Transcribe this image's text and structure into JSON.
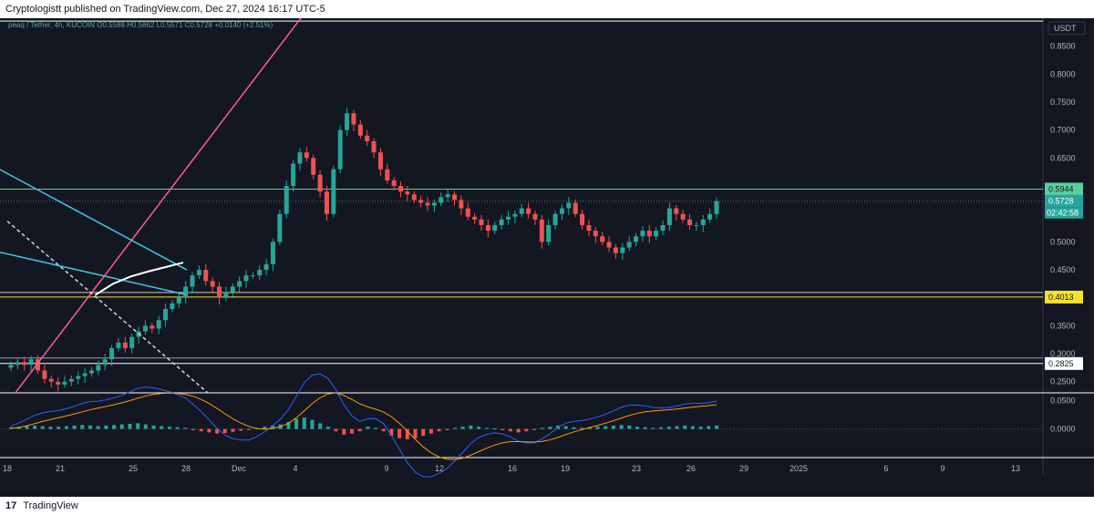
{
  "header": {
    "published_text": "Cryptologistt published on TradingView.com, Dec 27, 2024 16:17 UTC-5"
  },
  "footer": {
    "logo_glyph": "17",
    "brand": "TradingView"
  },
  "colors": {
    "background": "#131722",
    "up_candle": "#26a69a",
    "down_candle": "#ef5350",
    "trendline_pink": "#ff5c93",
    "wedge_cyan": "#3fc7e6",
    "support_yellow": "#f4e32c",
    "resistance_green": "#5ccf9c",
    "ma_white": "#ffffff",
    "macd_line": "#2962ff",
    "signal_line": "#ff9800"
  },
  "chart_data": {
    "type": "candlestick",
    "symbol_legend": "peaq / Tether, 4h, KUCOIN  O0.5588  H0.5862  L0.5571  C0.5728  +0.0140 (+2.51%)",
    "currency_label": "USDT",
    "price_axis": {
      "ticks": [
        "0.8500",
        "0.8000",
        "0.7500",
        "0.7000",
        "0.6500",
        "0.5500",
        "0.5000",
        "0.4500",
        "0.3500",
        "0.3000",
        "0.2500"
      ],
      "ylim": [
        0.23,
        0.9
      ]
    },
    "time_axis": {
      "ticks": [
        "18",
        "21",
        "25",
        "28",
        "Dec",
        "4",
        "9",
        "12",
        "16",
        "19",
        "23",
        "26",
        "29",
        "2025",
        "6",
        "9",
        "13"
      ]
    },
    "price_labels": {
      "resistance": "0.5944",
      "last_price": "0.5728",
      "countdown": "02:42:58",
      "support_1": "0.4013",
      "support_2": "0.2825"
    },
    "levels": {
      "resistance": 0.5944,
      "support_1": 0.4013,
      "support_2": 0.2825,
      "top_band": 0.895
    },
    "ohlc_last": {
      "open": 0.5588,
      "high": 0.5862,
      "low": 0.5571,
      "close": 0.5728,
      "change": 0.014,
      "change_pct": 2.51
    },
    "trendlines": {
      "pink_uptrend": [
        {
          "x": 18.5,
          "y": 0.232
        },
        {
          "x": 34.8,
          "y": 0.905
        }
      ],
      "dashed_downtrend": [
        {
          "x": 18.0,
          "y": 0.537
        },
        {
          "x": 29.4,
          "y": 0.23
        }
      ],
      "wedge_upper": [
        {
          "x": 10.5,
          "y": 0.749
        },
        {
          "x": 28.2,
          "y": 0.45
        }
      ],
      "wedge_lower": [
        {
          "x": 9.0,
          "y": 0.543
        },
        {
          "x": 28.1,
          "y": 0.406
        }
      ]
    },
    "candle_closes": [
      0.28,
      0.285,
      0.28,
      0.29,
      0.27,
      0.255,
      0.25,
      0.245,
      0.25,
      0.255,
      0.26,
      0.265,
      0.27,
      0.28,
      0.29,
      0.31,
      0.32,
      0.31,
      0.33,
      0.34,
      0.35,
      0.345,
      0.36,
      0.38,
      0.39,
      0.4,
      0.42,
      0.44,
      0.45,
      0.43,
      0.42,
      0.4,
      0.41,
      0.42,
      0.43,
      0.44,
      0.44,
      0.45,
      0.46,
      0.5,
      0.55,
      0.6,
      0.64,
      0.66,
      0.65,
      0.62,
      0.59,
      0.55,
      0.63,
      0.7,
      0.73,
      0.71,
      0.69,
      0.68,
      0.66,
      0.63,
      0.61,
      0.6,
      0.59,
      0.585,
      0.575,
      0.57,
      0.565,
      0.57,
      0.58,
      0.585,
      0.575,
      0.56,
      0.545,
      0.54,
      0.53,
      0.52,
      0.53,
      0.54,
      0.545,
      0.55,
      0.56,
      0.55,
      0.54,
      0.5,
      0.53,
      0.55,
      0.56,
      0.57,
      0.55,
      0.53,
      0.52,
      0.51,
      0.5,
      0.49,
      0.48,
      0.49,
      0.5,
      0.51,
      0.52,
      0.51,
      0.52,
      0.53,
      0.56,
      0.55,
      0.54,
      0.53,
      0.53,
      0.54,
      0.55,
      0.5728
    ],
    "ma_white": [
      {
        "x": 23.0,
        "y": 0.405
      },
      {
        "x": 24.0,
        "y": 0.425
      },
      {
        "x": 25.0,
        "y": 0.438
      },
      {
        "x": 26.0,
        "y": 0.447
      },
      {
        "x": 27.0,
        "y": 0.455
      },
      {
        "x": 28.0,
        "y": 0.463
      }
    ],
    "macd": {
      "ticks": [
        "0.0500",
        "0.0000"
      ],
      "ylim": [
        -0.05,
        0.06
      ],
      "histogram": [
        0.003,
        0.004,
        0.005,
        0.006,
        0.005,
        0.004,
        0.004,
        0.005,
        0.006,
        0.007,
        0.006,
        0.005,
        0.006,
        0.007,
        0.008,
        0.009,
        0.01,
        0.008,
        0.006,
        0.005,
        0.004,
        0.003,
        0.002,
        -0.002,
        -0.004,
        -0.006,
        -0.008,
        -0.007,
        -0.005,
        -0.003,
        -0.002,
        0.002,
        0.004,
        0.006,
        0.008,
        0.012,
        0.018,
        0.02,
        0.016,
        0.01,
        0.004,
        -0.004,
        -0.01,
        -0.008,
        -0.004,
        0.004,
        0.002,
        -0.004,
        -0.012,
        -0.016,
        -0.018,
        -0.016,
        -0.012,
        -0.008,
        -0.004,
        -0.002,
        0.002,
        0.004,
        0.006,
        0.004,
        0.002,
        0.001,
        -0.002,
        -0.004,
        -0.006,
        -0.004,
        -0.002,
        0.002,
        0.004,
        0.006,
        0.005,
        0.003,
        0.002,
        0.003,
        0.004,
        0.005,
        0.006,
        0.007,
        0.006,
        0.004,
        0.003,
        0.002,
        0.003,
        0.004,
        0.005,
        0.006,
        0.005,
        0.004,
        0.005,
        0.006
      ]
    }
  }
}
